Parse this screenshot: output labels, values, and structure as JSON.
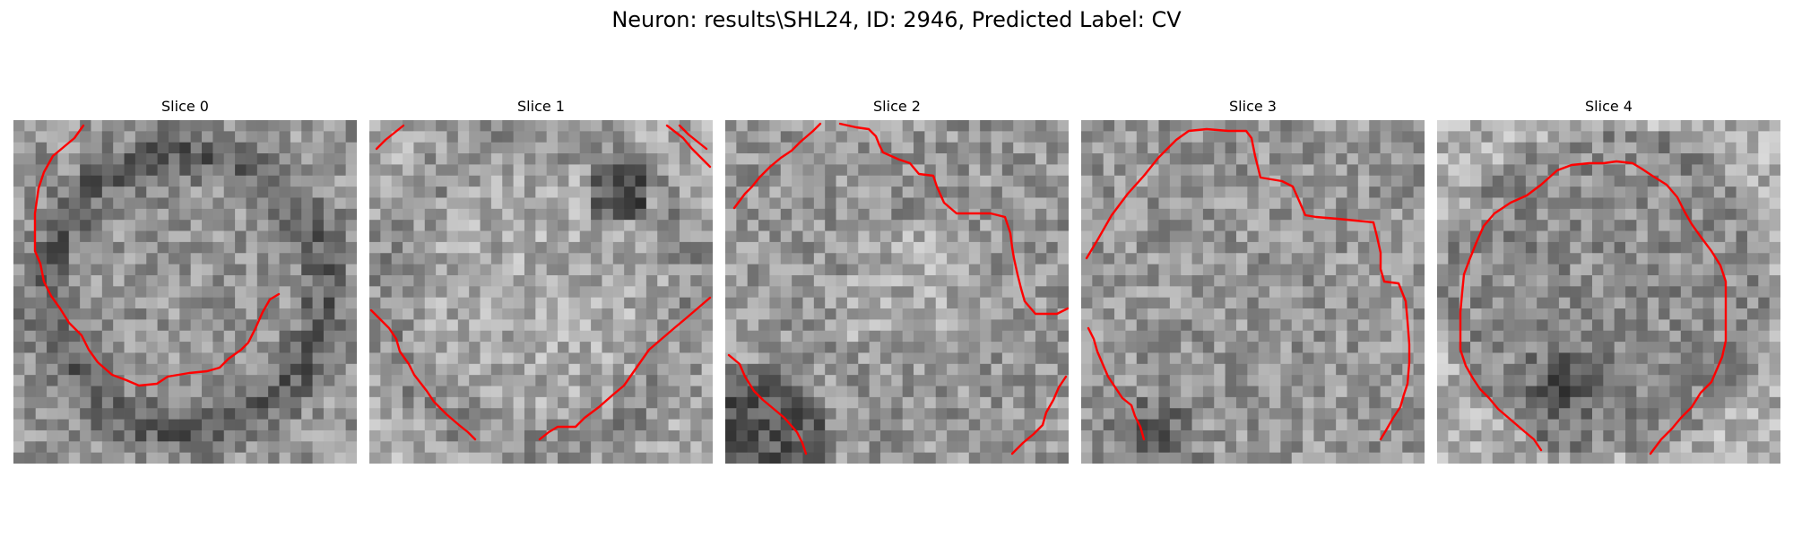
{
  "figure": {
    "title": "Neuron: results\\SHL24, ID: 2946, Predicted Label: CV"
  },
  "slices": [
    {
      "title": "Slice 0"
    },
    {
      "title": "Slice 1"
    },
    {
      "title": "Slice 2"
    },
    {
      "title": "Slice 3"
    },
    {
      "title": "Slice 4"
    }
  ],
  "colors": {
    "contour": "#ff0000",
    "background": "#ffffff"
  }
}
